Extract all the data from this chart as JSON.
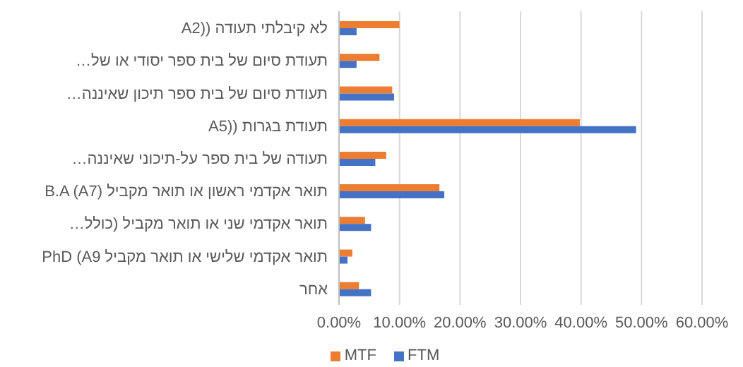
{
  "chart_data": {
    "type": "bar",
    "orientation": "horizontal",
    "categories": [
      "לא קיבלתי תעודה ((A2",
      "תעודת סיום של בית ספר יסודי או של…",
      "תעודת סיום של בית ספר תיכון שאיננה…",
      "תעודת בגרות ((A5",
      "תעודה של בית ספר על-תיכוני שאיננה…",
      "B.A (A7)  תואר אקדמי ראשון או תואר מקביל",
      "תואר אקדמי שני או תואר מקביל (כולל…",
      "תואר אקדמי שלישי או תואר מקביל PhD (A9",
      "אחר"
    ],
    "series": [
      {
        "name": "MTF",
        "color": "#ed7d31",
        "values": [
          10.0,
          6.7,
          8.8,
          39.8,
          7.8,
          16.6,
          4.3,
          2.2,
          3.3
        ]
      },
      {
        "name": "FTM",
        "color": "#4472c4",
        "values": [
          2.9,
          2.9,
          9.1,
          49.1,
          6.0,
          17.4,
          5.3,
          1.4,
          5.3
        ]
      }
    ],
    "xlim": [
      0,
      60
    ],
    "xticks": [
      {
        "value": 0,
        "label": "0.00%"
      },
      {
        "value": 10,
        "label": "10.00%"
      },
      {
        "value": 20,
        "label": "20.00%"
      },
      {
        "value": 30,
        "label": "30.00%"
      },
      {
        "value": 40,
        "label": "40.00%"
      },
      {
        "value": 50,
        "label": "50.00%"
      },
      {
        "value": 60,
        "label": "60.00%"
      }
    ],
    "grid": "x",
    "legend": "bottom"
  }
}
